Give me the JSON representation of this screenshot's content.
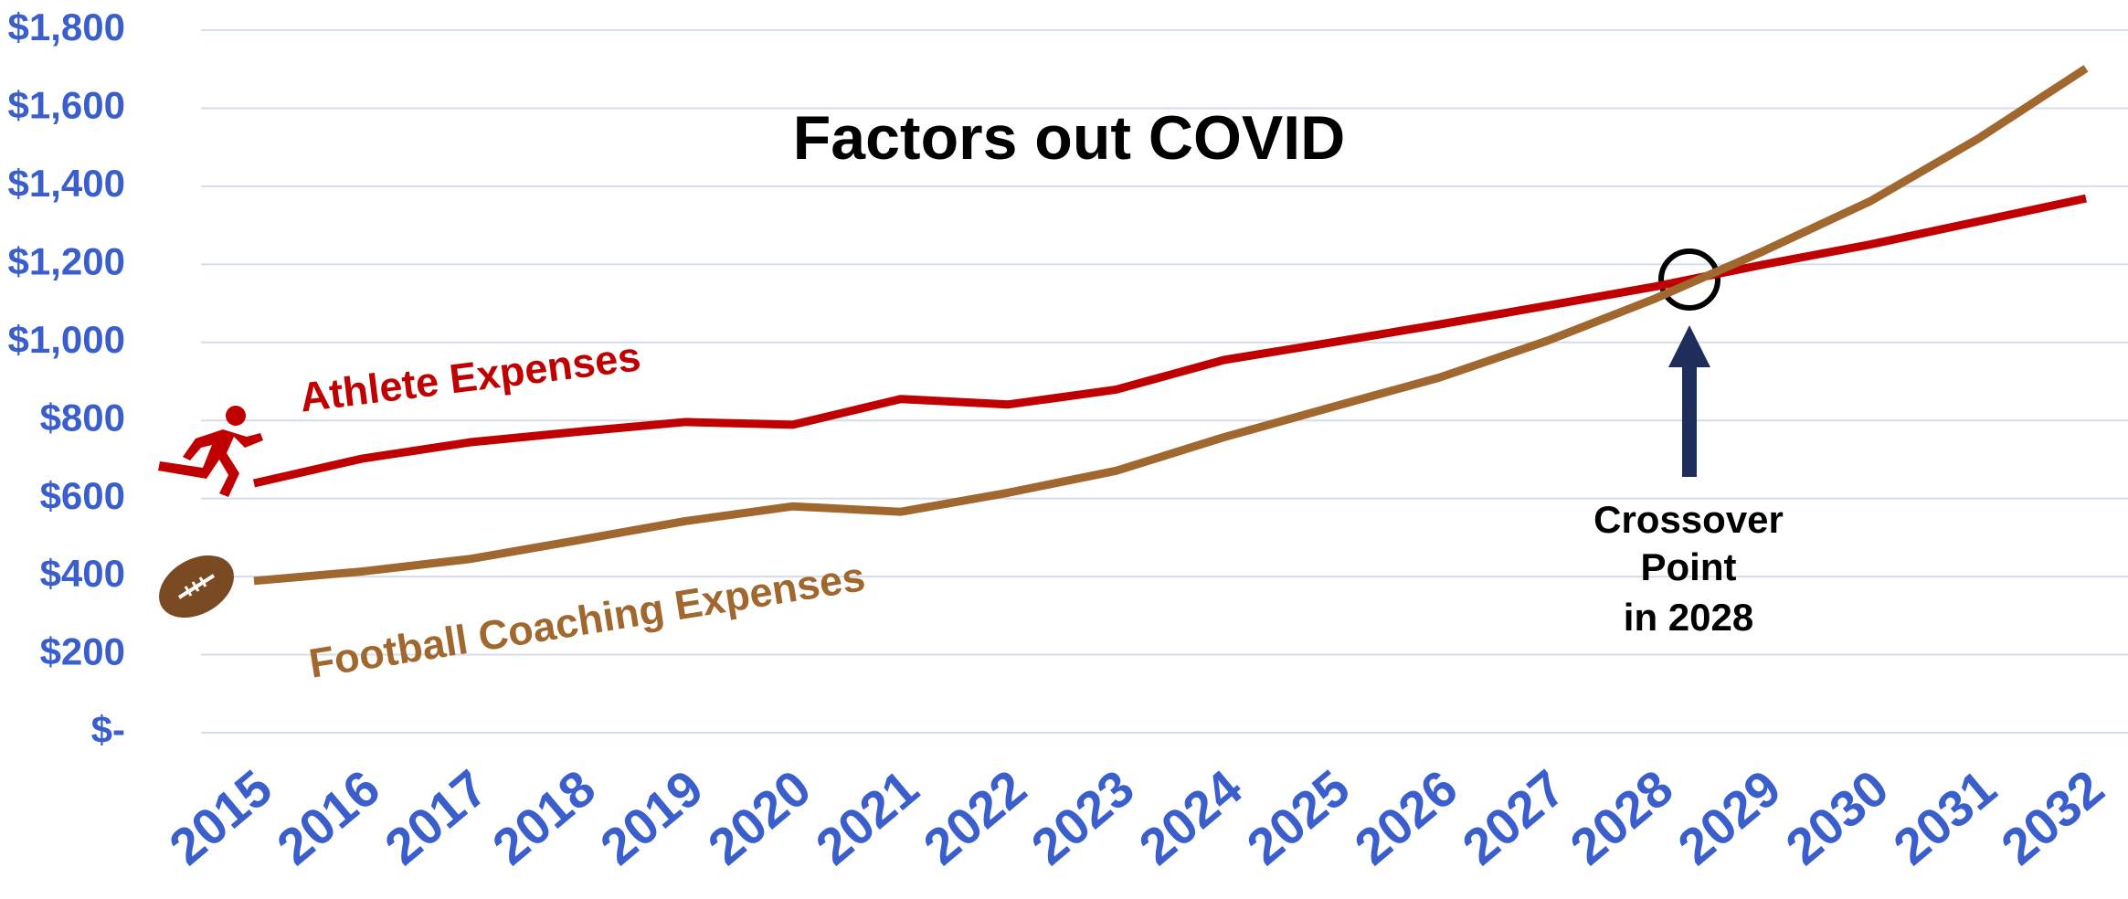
{
  "chart_data": {
    "type": "line",
    "title": "Factors out COVID",
    "annotation": [
      "Crossover",
      "Point",
      "in 2028"
    ],
    "categories": [
      "2015",
      "2016",
      "2017",
      "2018",
      "2019",
      "2020",
      "2021",
      "2022",
      "2023",
      "2024",
      "2025",
      "2026",
      "2027",
      "2028",
      "2029",
      "2030",
      "2031",
      "2032"
    ],
    "series": [
      {
        "name": "Athlete Expenses",
        "color": "#c00000",
        "values": [
          639,
          702,
          744,
          771,
          796,
          789,
          855,
          841,
          879,
          955,
          1000,
          1046,
          1094,
          1143,
          1199,
          1251,
          1310,
          1369
        ]
      },
      {
        "name": "Football Coaching Expenses",
        "color": "#a0672e",
        "values": [
          389,
          413,
          445,
          493,
          542,
          580,
          566,
          615,
          671,
          757,
          834,
          910,
          1004,
          1112,
          1233,
          1362,
          1522,
          1702
        ]
      }
    ],
    "ylim": [
      0,
      1800
    ],
    "yticks": [
      {
        "value": 0,
        "label": "$-"
      },
      {
        "value": 200,
        "label": "$200"
      },
      {
        "value": 400,
        "label": "$400"
      },
      {
        "value": 600,
        "label": "$600"
      },
      {
        "value": 800,
        "label": "$800"
      },
      {
        "value": 1000,
        "label": "$1,000"
      },
      {
        "value": 1200,
        "label": "$1,200"
      },
      {
        "value": 1400,
        "label": "$1,400"
      },
      {
        "value": 1600,
        "label": "$1,600"
      },
      {
        "value": 1800,
        "label": "$1,800"
      }
    ],
    "grid": true
  }
}
